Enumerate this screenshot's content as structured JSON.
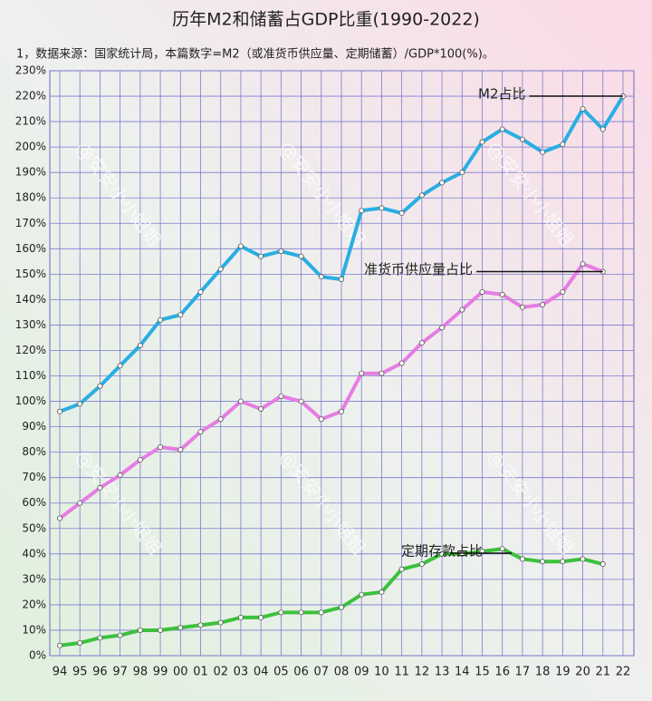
{
  "chart_data": {
    "type": "line",
    "title": "历年M2和储蓄占GDP比重(1990-2022)",
    "subtitle": "1，数据来源：国家统计局，本篇数字=M2（或准货币供应量、定期储蓄）/GDP*100(%)。",
    "watermark": "@安安小小姐姐",
    "categories": [
      "94",
      "95",
      "96",
      "97",
      "98",
      "99",
      "00",
      "01",
      "02",
      "03",
      "04",
      "05",
      "06",
      "07",
      "08",
      "09",
      "10",
      "11",
      "12",
      "13",
      "14",
      "15",
      "16",
      "17",
      "18",
      "19",
      "20",
      "21",
      "22"
    ],
    "series": [
      {
        "name": "M2占比",
        "color": "#2aaee3",
        "values": [
          96,
          99,
          106,
          114,
          122,
          132,
          134,
          143,
          152,
          161,
          157,
          159,
          157,
          149,
          148,
          175,
          176,
          174,
          181,
          186,
          190,
          202,
          207,
          203,
          198,
          201,
          215,
          207,
          220
        ]
      },
      {
        "name": "准货币供应量占比",
        "color": "#e67de3",
        "values": [
          54,
          60,
          66,
          71,
          77,
          82,
          81,
          88,
          93,
          100,
          97,
          102,
          100,
          93,
          96,
          111,
          111,
          115,
          123,
          129,
          136,
          143,
          142,
          137,
          138,
          143,
          154,
          151,
          null
        ]
      },
      {
        "name": "定期存款占比",
        "color": "#3cc13c",
        "values": [
          4,
          5,
          7,
          8,
          10,
          10,
          11,
          12,
          13,
          15,
          15,
          17,
          17,
          17,
          19,
          24,
          25,
          34,
          36,
          40,
          40,
          41,
          42,
          38,
          37,
          37,
          38,
          36,
          null
        ]
      }
    ],
    "ylim": [
      0,
      230
    ],
    "yticks": [
      {
        "value": 0,
        "label": "0%"
      },
      {
        "value": 10,
        "label": "10%"
      },
      {
        "value": 20,
        "label": "20%"
      },
      {
        "value": 30,
        "label": "30%"
      },
      {
        "value": 40,
        "label": "40%"
      },
      {
        "value": 50,
        "label": "50%"
      },
      {
        "value": 60,
        "label": "60%"
      },
      {
        "value": 70,
        "label": "70%"
      },
      {
        "value": 80,
        "label": "80%"
      },
      {
        "value": 90,
        "label": "90%"
      },
      {
        "value": 100,
        "label": "100%"
      },
      {
        "value": 110,
        "label": "110%"
      },
      {
        "value": 120,
        "label": "120%"
      },
      {
        "value": 130,
        "label": "130%"
      },
      {
        "value": 140,
        "label": "140%"
      },
      {
        "value": 150,
        "label": "150%"
      },
      {
        "value": 160,
        "label": "160%"
      },
      {
        "value": 170,
        "label": "170%"
      },
      {
        "value": 180,
        "label": "180%"
      },
      {
        "value": 190,
        "label": "190%"
      },
      {
        "value": 200,
        "label": "200%"
      },
      {
        "value": 210,
        "label": "210%"
      },
      {
        "value": 220,
        "label": "220%"
      },
      {
        "value": 230,
        "label": "230%"
      }
    ],
    "grid": true
  }
}
